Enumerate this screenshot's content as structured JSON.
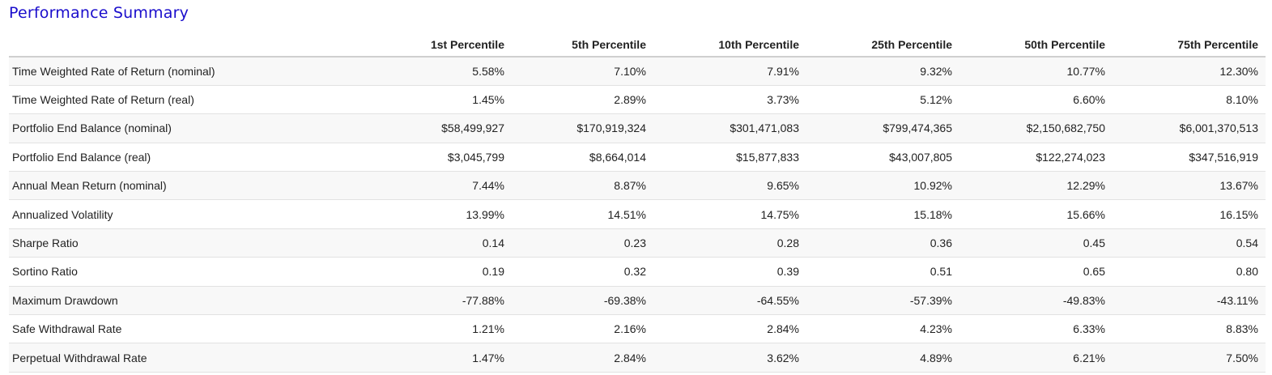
{
  "title": "Performance Summary",
  "columns": [
    "",
    "1st Percentile",
    "5th Percentile",
    "10th Percentile",
    "25th Percentile",
    "50th Percentile",
    "75th Percentile"
  ],
  "rows": [
    {
      "label": "Time Weighted Rate of Return (nominal)",
      "values": [
        "5.58%",
        "7.10%",
        "7.91%",
        "9.32%",
        "10.77%",
        "12.30%"
      ]
    },
    {
      "label": "Time Weighted Rate of Return (real)",
      "values": [
        "1.45%",
        "2.89%",
        "3.73%",
        "5.12%",
        "6.60%",
        "8.10%"
      ]
    },
    {
      "label": "Portfolio End Balance (nominal)",
      "values": [
        "$58,499,927",
        "$170,919,324",
        "$301,471,083",
        "$799,474,365",
        "$2,150,682,750",
        "$6,001,370,513"
      ]
    },
    {
      "label": "Portfolio End Balance (real)",
      "values": [
        "$3,045,799",
        "$8,664,014",
        "$15,877,833",
        "$43,007,805",
        "$122,274,023",
        "$347,516,919"
      ]
    },
    {
      "label": "Annual Mean Return (nominal)",
      "values": [
        "7.44%",
        "8.87%",
        "9.65%",
        "10.92%",
        "12.29%",
        "13.67%"
      ]
    },
    {
      "label": "Annualized Volatility",
      "values": [
        "13.99%",
        "14.51%",
        "14.75%",
        "15.18%",
        "15.66%",
        "16.15%"
      ]
    },
    {
      "label": "Sharpe Ratio",
      "values": [
        "0.14",
        "0.23",
        "0.28",
        "0.36",
        "0.45",
        "0.54"
      ]
    },
    {
      "label": "Sortino Ratio",
      "values": [
        "0.19",
        "0.32",
        "0.39",
        "0.51",
        "0.65",
        "0.80"
      ]
    },
    {
      "label": "Maximum Drawdown",
      "values": [
        "-77.88%",
        "-69.38%",
        "-64.55%",
        "-57.39%",
        "-49.83%",
        "-43.11%"
      ]
    },
    {
      "label": "Safe Withdrawal Rate",
      "values": [
        "1.21%",
        "2.16%",
        "2.84%",
        "4.23%",
        "6.33%",
        "8.83%"
      ]
    },
    {
      "label": "Perpetual Withdrawal Rate",
      "values": [
        "1.47%",
        "2.84%",
        "3.62%",
        "4.89%",
        "6.21%",
        "7.50%"
      ]
    }
  ]
}
